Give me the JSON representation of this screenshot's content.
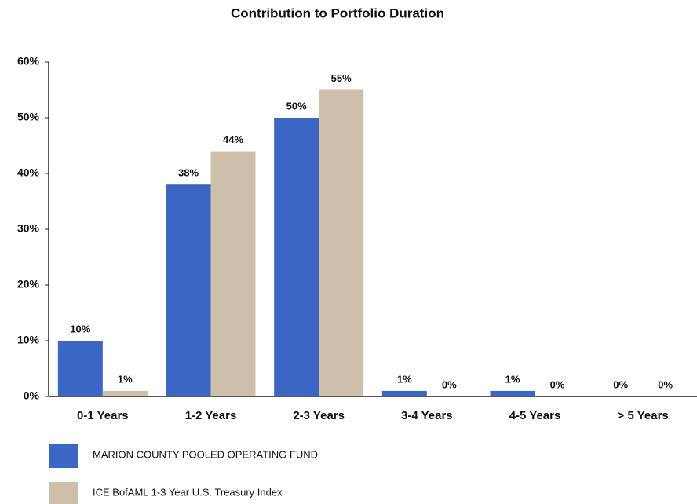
{
  "chart_data": {
    "type": "bar",
    "title": "Contribution to Portfolio Duration",
    "categories": [
      "0-1 Years",
      "1-2 Years",
      "2-3 Years",
      "3-4 Years",
      "4-5 Years",
      "> 5 Years"
    ],
    "series": [
      {
        "name": "MARION COUNTY POOLED OPERATING FUND",
        "color": "#3b66c3",
        "values": [
          10,
          38,
          50,
          1,
          1,
          0
        ],
        "value_labels": [
          "10%",
          "38%",
          "50%",
          "1%",
          "1%",
          "0%"
        ]
      },
      {
        "name": "ICE BofAML 1-3 Year U.S. Treasury Index",
        "color": "#cdbfa9",
        "values": [
          1,
          44,
          55,
          0,
          0,
          0
        ],
        "value_labels": [
          "1%",
          "44%",
          "55%",
          "0%",
          "0%",
          "0%"
        ]
      }
    ],
    "ylim": [
      0,
      60
    ],
    "yticks": [
      {
        "value": 0,
        "label": "0%"
      },
      {
        "value": 10,
        "label": "10%"
      },
      {
        "value": 20,
        "label": "20%"
      },
      {
        "value": 30,
        "label": "30%"
      },
      {
        "value": 40,
        "label": "40%"
      },
      {
        "value": 50,
        "label": "50%"
      },
      {
        "value": 60,
        "label": "60%"
      }
    ],
    "legend": "bottom"
  }
}
